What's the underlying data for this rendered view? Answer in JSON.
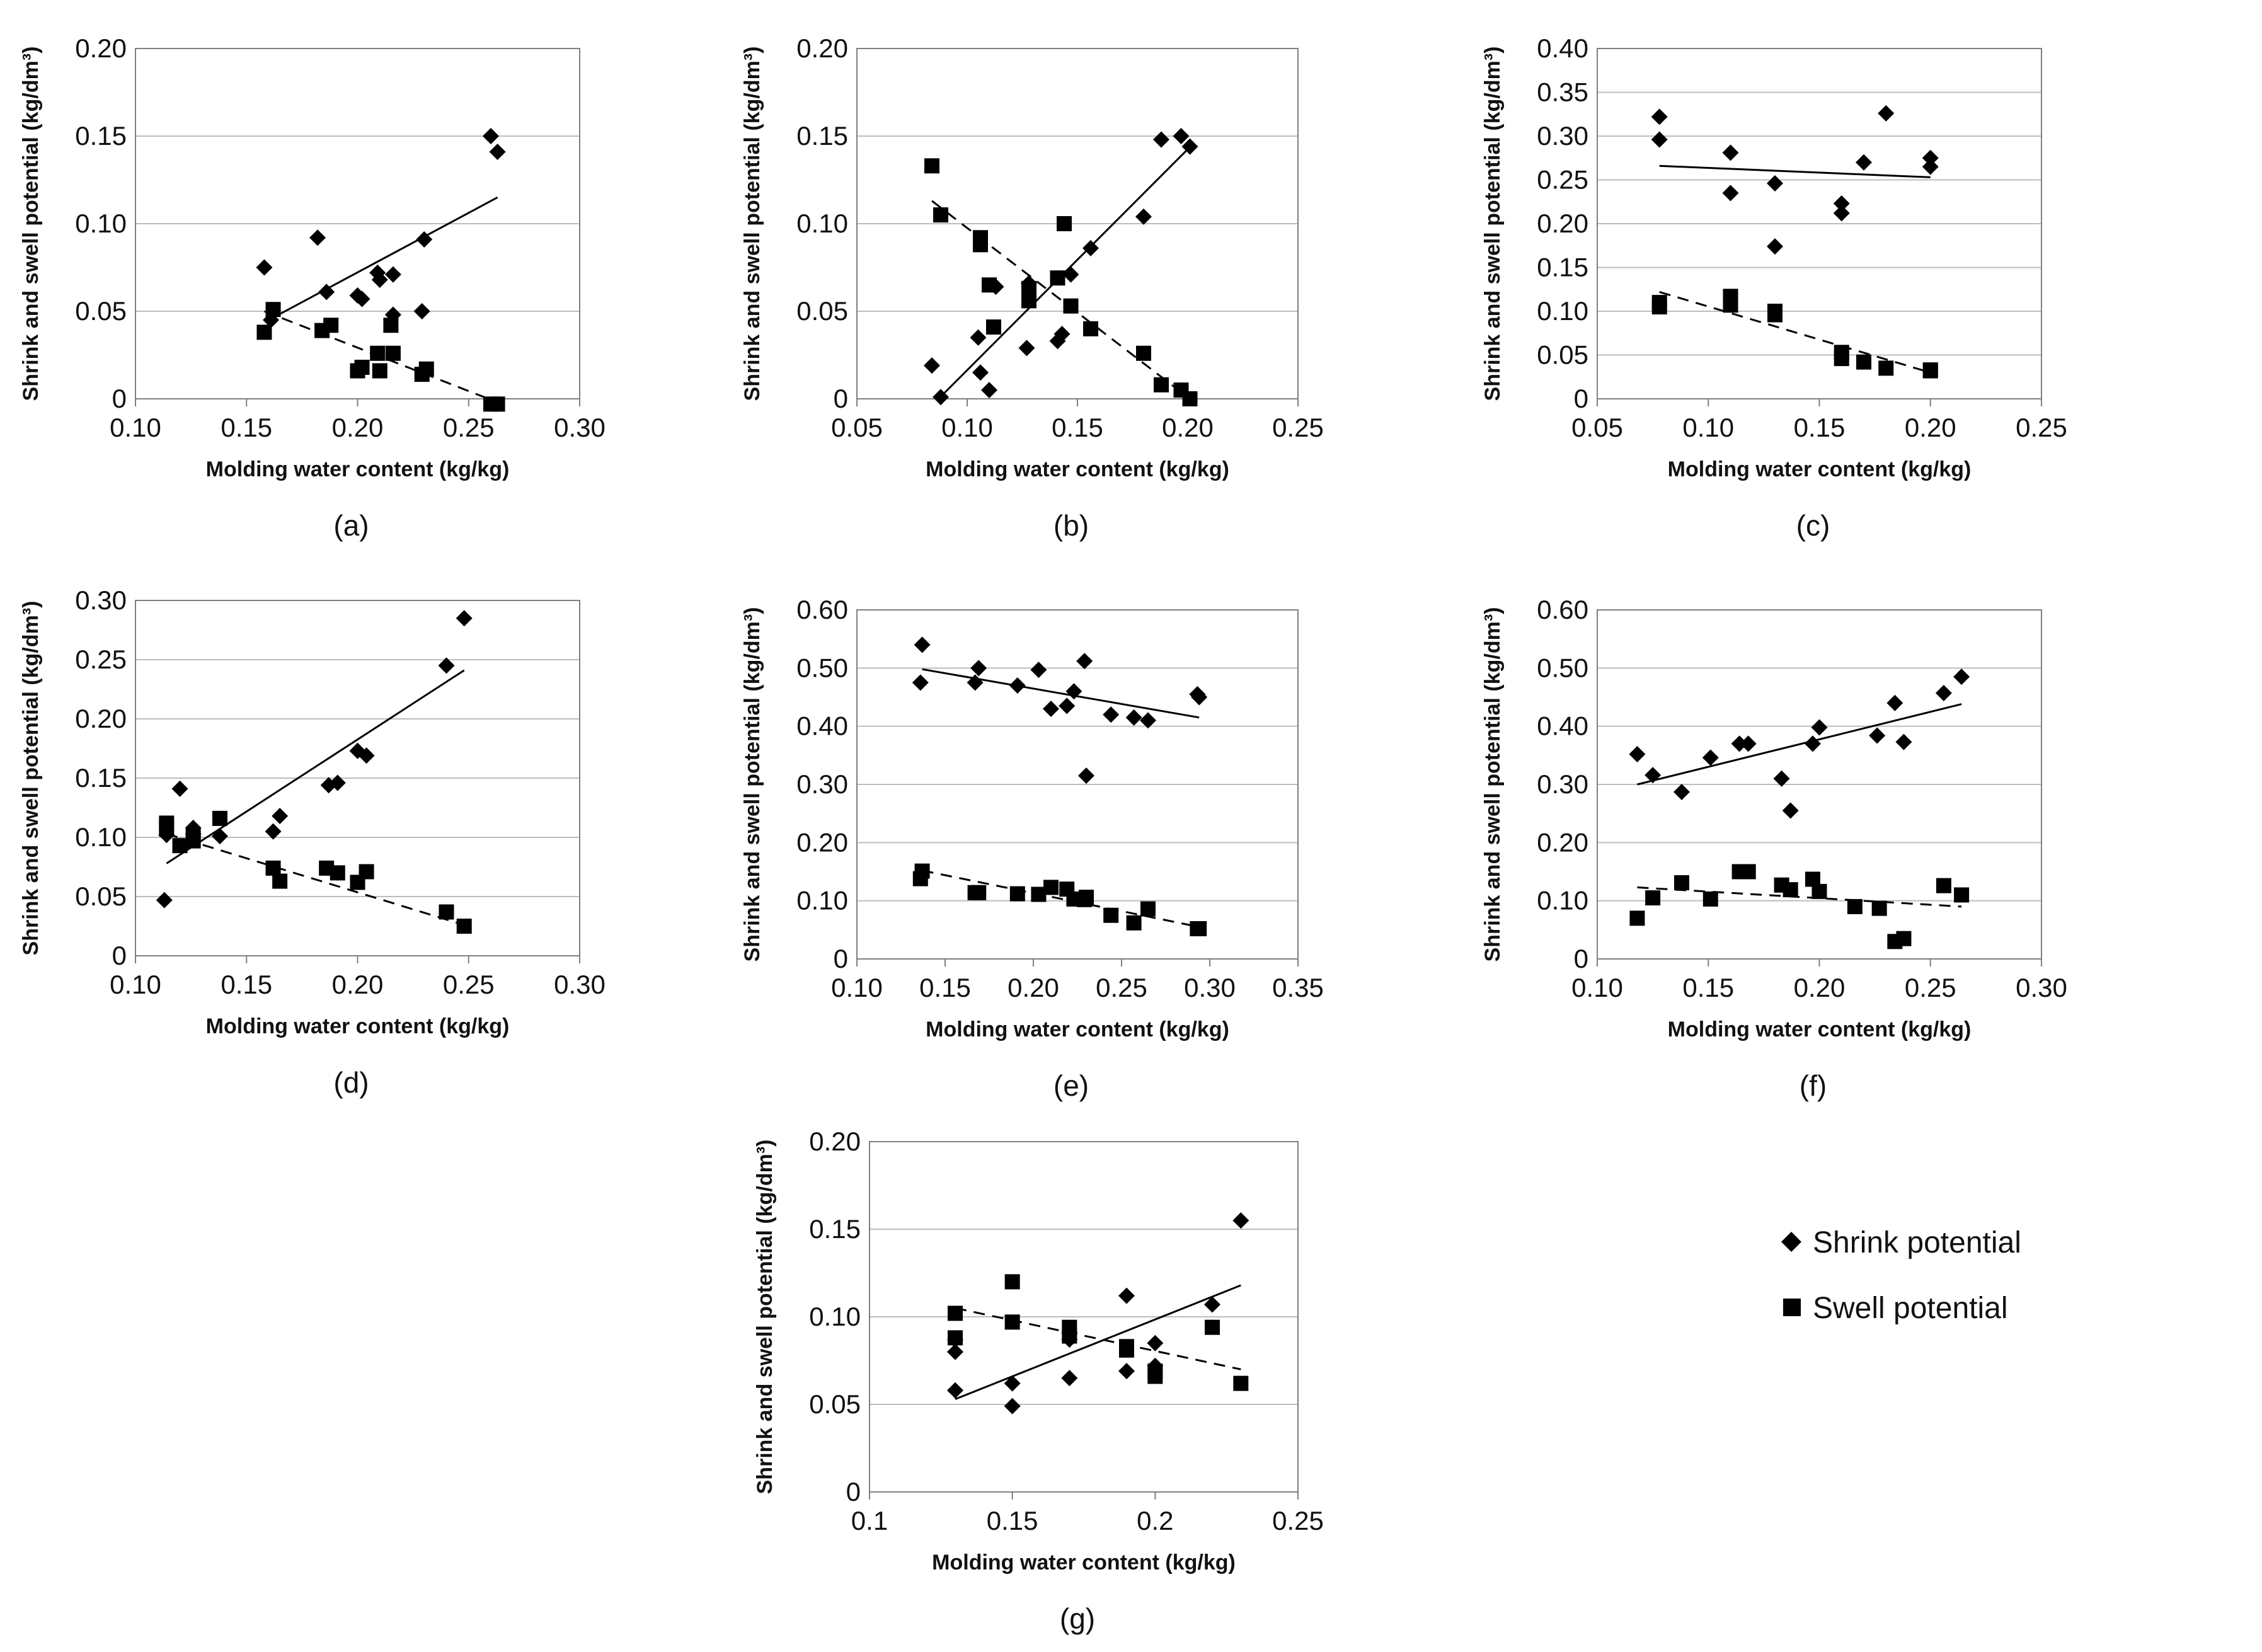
{
  "legend": {
    "shrink_label": "Shrink potential",
    "swell_label": "Swell potential"
  },
  "colors": {
    "marker": "#000000",
    "grid": "#bdbdbd",
    "axis": "#7f7f7f"
  },
  "chart_data": [
    {
      "panel": "(a)",
      "type": "scatter",
      "xlabel": "Molding water content (kg/kg)",
      "ylabel": "Shrink and swell potential (kg/dm³)",
      "xlim": [
        0.1,
        0.3
      ],
      "ylim": [
        0,
        0.2
      ],
      "xticks": [
        0.1,
        0.15,
        0.2,
        0.25,
        0.3
      ],
      "xtick_labels": [
        "0.10",
        "0.15",
        "0.20",
        "0.25",
        "0.30"
      ],
      "yticks": [
        0,
        0.05,
        0.1,
        0.15,
        0.2
      ],
      "ytick_labels": [
        "0",
        "0.05",
        "0.10",
        "0.15",
        "0.20"
      ],
      "series": [
        {
          "name": "Shrink potential",
          "marker": "diamond",
          "x": [
            0.158,
            0.161,
            0.182,
            0.186,
            0.2,
            0.202,
            0.209,
            0.21,
            0.216,
            0.216,
            0.229,
            0.23,
            0.26,
            0.263
          ],
          "y": [
            0.075,
            0.045,
            0.092,
            0.061,
            0.059,
            0.057,
            0.072,
            0.068,
            0.071,
            0.048,
            0.05,
            0.091,
            0.15,
            0.141
          ],
          "trend": {
            "style": "solid",
            "x": [
              0.16,
              0.263
            ],
            "y": [
              0.045,
              0.115
            ]
          }
        },
        {
          "name": "Swell potential",
          "marker": "square",
          "x": [
            0.158,
            0.162,
            0.184,
            0.188,
            0.2,
            0.202,
            0.209,
            0.21,
            0.215,
            0.216,
            0.229,
            0.231,
            0.26,
            0.263
          ],
          "y": [
            0.038,
            0.051,
            0.039,
            0.042,
            0.016,
            0.018,
            0.026,
            0.016,
            0.042,
            0.026,
            0.014,
            0.017,
            -0.003,
            -0.003
          ],
          "trend": {
            "style": "dashed",
            "x": [
              0.158,
              0.263
            ],
            "y": [
              0.05,
              -0.002
            ]
          }
        }
      ]
    },
    {
      "panel": "(b)",
      "type": "scatter",
      "xlabel": "Molding water content (kg/kg)",
      "ylabel": "Shrink and swell potential (kg/dm³)",
      "xlim": [
        0.05,
        0.25
      ],
      "ylim": [
        0,
        0.2
      ],
      "xticks": [
        0.05,
        0.1,
        0.15,
        0.2,
        0.25
      ],
      "xtick_labels": [
        "0.05",
        "0.10",
        "0.15",
        "0.20",
        "0.25"
      ],
      "yticks": [
        0,
        0.05,
        0.1,
        0.15,
        0.2
      ],
      "ytick_labels": [
        "0",
        "0.05",
        "0.10",
        "0.15",
        "0.20"
      ],
      "series": [
        {
          "name": "Shrink potential",
          "marker": "diamond",
          "x": [
            0.084,
            0.088,
            0.105,
            0.106,
            0.11,
            0.113,
            0.127,
            0.128,
            0.141,
            0.143,
            0.147,
            0.156,
            0.18,
            0.188,
            0.197,
            0.201
          ],
          "y": [
            0.019,
            0.001,
            0.035,
            0.015,
            0.005,
            0.064,
            0.029,
            0.066,
            0.033,
            0.037,
            0.071,
            0.086,
            0.104,
            0.148,
            0.15,
            0.144
          ],
          "trend": {
            "style": "solid",
            "x": [
              0.087,
              0.202
            ],
            "y": [
              0.0,
              0.145
            ]
          }
        },
        {
          "name": "Swell potential",
          "marker": "square",
          "x": [
            0.084,
            0.088,
            0.106,
            0.106,
            0.11,
            0.112,
            0.128,
            0.128,
            0.141,
            0.144,
            0.147,
            0.156,
            0.18,
            0.188,
            0.197,
            0.201
          ],
          "y": [
            0.133,
            0.105,
            0.092,
            0.088,
            0.065,
            0.041,
            0.063,
            0.056,
            0.069,
            0.1,
            0.053,
            0.04,
            0.026,
            0.008,
            0.005,
            0.0
          ],
          "trend": {
            "style": "dashed",
            "x": [
              0.084,
              0.201
            ],
            "y": [
              0.113,
              0.0
            ]
          }
        }
      ]
    },
    {
      "panel": "(c)",
      "type": "scatter",
      "xlabel": "Molding water content (kg/kg)",
      "ylabel": "Shrink and swell potential (kg/dm³)",
      "xlim": [
        0.05,
        0.25
      ],
      "ylim": [
        0,
        0.4
      ],
      "xticks": [
        0.05,
        0.1,
        0.15,
        0.2,
        0.25
      ],
      "xtick_labels": [
        "0.05",
        "0.10",
        "0.15",
        "0.20",
        "0.25"
      ],
      "yticks": [
        0,
        0.05,
        0.1,
        0.15,
        0.2,
        0.25,
        0.3,
        0.35,
        0.4
      ],
      "ytick_labels": [
        "0",
        "0.05",
        "0.10",
        "0.15",
        "0.20",
        "0.25",
        "0.30",
        "0.35",
        "0.40"
      ],
      "series": [
        {
          "name": "Shrink potential",
          "marker": "diamond",
          "x": [
            0.078,
            0.078,
            0.11,
            0.11,
            0.13,
            0.13,
            0.16,
            0.16,
            0.17,
            0.18,
            0.2,
            0.2
          ],
          "y": [
            0.322,
            0.296,
            0.281,
            0.235,
            0.246,
            0.174,
            0.223,
            0.212,
            0.27,
            0.326,
            0.275,
            0.265
          ],
          "trend": {
            "style": "solid",
            "x": [
              0.078,
              0.2
            ],
            "y": [
              0.266,
              0.253
            ]
          }
        },
        {
          "name": "Swell potential",
          "marker": "square",
          "x": [
            0.078,
            0.078,
            0.11,
            0.11,
            0.13,
            0.13,
            0.16,
            0.16,
            0.17,
            0.18,
            0.2,
            0.2
          ],
          "y": [
            0.11,
            0.105,
            0.117,
            0.107,
            0.1,
            0.096,
            0.053,
            0.046,
            0.042,
            0.035,
            0.033,
            0.032
          ],
          "trend": {
            "style": "dashed",
            "x": [
              0.078,
              0.2
            ],
            "y": [
              0.122,
              0.03
            ]
          }
        }
      ]
    },
    {
      "panel": "(d)",
      "type": "scatter",
      "xlabel": "Molding water content (kg/kg)",
      "ylabel": "Shrink and swell potential (kg/dm³)",
      "xlim": [
        0.1,
        0.3
      ],
      "ylim": [
        0,
        0.3
      ],
      "xticks": [
        0.1,
        0.15,
        0.2,
        0.25,
        0.3
      ],
      "xtick_labels": [
        "0.10",
        "0.15",
        "0.20",
        "0.25",
        "0.30"
      ],
      "yticks": [
        0,
        0.05,
        0.1,
        0.15,
        0.2,
        0.25,
        0.3
      ],
      "ytick_labels": [
        "0",
        "0.05",
        "0.10",
        "0.15",
        "0.20",
        "0.25",
        "0.30"
      ],
      "series": [
        {
          "name": "Shrink potential",
          "marker": "diamond",
          "x": [
            0.113,
            0.114,
            0.12,
            0.126,
            0.126,
            0.138,
            0.162,
            0.165,
            0.187,
            0.191,
            0.2,
            0.204,
            0.24,
            0.248
          ],
          "y": [
            0.047,
            0.102,
            0.141,
            0.108,
            0.103,
            0.101,
            0.105,
            0.118,
            0.144,
            0.146,
            0.173,
            0.169,
            0.245,
            0.285
          ],
          "trend": {
            "style": "solid",
            "x": [
              0.114,
              0.248
            ],
            "y": [
              0.078,
              0.241
            ]
          }
        },
        {
          "name": "Swell potential",
          "marker": "square",
          "x": [
            0.114,
            0.114,
            0.12,
            0.126,
            0.126,
            0.138,
            0.162,
            0.165,
            0.186,
            0.191,
            0.2,
            0.204,
            0.24,
            0.248
          ],
          "y": [
            0.112,
            0.107,
            0.093,
            0.101,
            0.097,
            0.116,
            0.074,
            0.063,
            0.074,
            0.07,
            0.062,
            0.071,
            0.037,
            0.025
          ],
          "trend": {
            "style": "dashed",
            "x": [
              0.114,
              0.248
            ],
            "y": [
              0.103,
              0.026
            ]
          }
        }
      ]
    },
    {
      "panel": "(e)",
      "type": "scatter",
      "xlabel": "Molding water content (kg/kg)",
      "ylabel": "Shrink and swell potential (kg/dm³)",
      "xlim": [
        0.1,
        0.35
      ],
      "ylim": [
        0,
        0.6
      ],
      "xticks": [
        0.1,
        0.15,
        0.2,
        0.25,
        0.3,
        0.35
      ],
      "xtick_labels": [
        "0.10",
        "0.15",
        "0.20",
        "0.25",
        "0.30",
        "0.35"
      ],
      "yticks": [
        0,
        0.1,
        0.2,
        0.3,
        0.4,
        0.5,
        0.6
      ],
      "ytick_labels": [
        "0",
        "0.10",
        "0.20",
        "0.30",
        "0.40",
        "0.50",
        "0.60"
      ],
      "series": [
        {
          "name": "Shrink potential",
          "marker": "diamond",
          "x": [
            0.136,
            0.137,
            0.167,
            0.169,
            0.191,
            0.203,
            0.21,
            0.219,
            0.223,
            0.229,
            0.23,
            0.244,
            0.257,
            0.265,
            0.293,
            0.294
          ],
          "y": [
            0.475,
            0.54,
            0.475,
            0.5,
            0.47,
            0.497,
            0.43,
            0.435,
            0.46,
            0.512,
            0.315,
            0.42,
            0.415,
            0.41,
            0.455,
            0.45
          ],
          "trend": {
            "style": "solid",
            "x": [
              0.137,
              0.294
            ],
            "y": [
              0.498,
              0.415
            ]
          }
        },
        {
          "name": "Swell potential",
          "marker": "square",
          "x": [
            0.136,
            0.137,
            0.167,
            0.169,
            0.191,
            0.203,
            0.21,
            0.219,
            0.223,
            0.229,
            0.23,
            0.244,
            0.257,
            0.265,
            0.293,
            0.294
          ],
          "y": [
            0.138,
            0.151,
            0.114,
            0.114,
            0.112,
            0.111,
            0.123,
            0.12,
            0.103,
            0.102,
            0.106,
            0.075,
            0.062,
            0.086,
            0.052,
            0.052
          ],
          "trend": {
            "style": "dashed",
            "x": [
              0.137,
              0.294
            ],
            "y": [
              0.152,
              0.055
            ]
          }
        }
      ]
    },
    {
      "panel": "(f)",
      "type": "scatter",
      "xlabel": "Molding water content (kg/kg)",
      "ylabel": "Shrink and swell potential (kg/dm³)",
      "xlim": [
        0.1,
        0.3
      ],
      "ylim": [
        0,
        0.6
      ],
      "xticks": [
        0.1,
        0.15,
        0.2,
        0.25,
        0.3
      ],
      "xtick_labels": [
        "0.10",
        "0.15",
        "0.20",
        "0.25",
        "0.30"
      ],
      "yticks": [
        0,
        0.1,
        0.2,
        0.3,
        0.4,
        0.5,
        0.6
      ],
      "ytick_labels": [
        "0",
        "0.10",
        "0.20",
        "0.30",
        "0.40",
        "0.50",
        "0.60"
      ],
      "series": [
        {
          "name": "Shrink potential",
          "marker": "diamond",
          "x": [
            0.118,
            0.125,
            0.138,
            0.151,
            0.164,
            0.168,
            0.183,
            0.187,
            0.197,
            0.2,
            0.226,
            0.234,
            0.238,
            0.256,
            0.264
          ],
          "y": [
            0.352,
            0.316,
            0.287,
            0.346,
            0.37,
            0.37,
            0.31,
            0.255,
            0.37,
            0.398,
            0.384,
            0.44,
            0.373,
            0.457,
            0.485
          ],
          "trend": {
            "style": "solid",
            "x": [
              0.118,
              0.264
            ],
            "y": [
              0.3,
              0.438
            ]
          }
        },
        {
          "name": "Swell potential",
          "marker": "square",
          "x": [
            0.118,
            0.125,
            0.138,
            0.151,
            0.164,
            0.168,
            0.183,
            0.187,
            0.197,
            0.2,
            0.216,
            0.227,
            0.234,
            0.238,
            0.256,
            0.264
          ],
          "y": [
            0.07,
            0.105,
            0.131,
            0.103,
            0.15,
            0.15,
            0.127,
            0.119,
            0.137,
            0.116,
            0.09,
            0.087,
            0.03,
            0.035,
            0.126,
            0.11
          ],
          "trend": {
            "style": "dashed",
            "x": [
              0.118,
              0.264
            ],
            "y": [
              0.123,
              0.09
            ]
          }
        }
      ]
    },
    {
      "panel": "(g)",
      "type": "scatter",
      "xlabel": "Molding water content (kg/kg)",
      "ylabel": "Shrink and swell potential (kg/dm³)",
      "xlim": [
        0.1,
        0.25
      ],
      "ylim": [
        0,
        0.2
      ],
      "xticks": [
        0.1,
        0.15,
        0.2,
        0.25
      ],
      "xtick_labels": [
        "0.1",
        "0.15",
        "0.2",
        "0.25"
      ],
      "yticks": [
        0,
        0.05,
        0.1,
        0.15,
        0.2
      ],
      "ytick_labels": [
        "0",
        "0.05",
        "0.10",
        "0.15",
        "0.20"
      ],
      "series": [
        {
          "name": "Shrink potential",
          "marker": "diamond",
          "x": [
            0.13,
            0.13,
            0.13,
            0.15,
            0.15,
            0.17,
            0.17,
            0.17,
            0.19,
            0.19,
            0.2,
            0.2,
            0.22,
            0.23
          ],
          "y": [
            0.058,
            0.08,
            0.087,
            0.049,
            0.062,
            0.065,
            0.087,
            0.091,
            0.069,
            0.112,
            0.085,
            0.072,
            0.107,
            0.155
          ],
          "trend": {
            "style": "solid",
            "x": [
              0.13,
              0.23
            ],
            "y": [
              0.053,
              0.118
            ]
          }
        },
        {
          "name": "Swell potential",
          "marker": "square",
          "x": [
            0.13,
            0.13,
            0.15,
            0.15,
            0.17,
            0.17,
            0.19,
            0.19,
            0.2,
            0.2,
            0.22,
            0.23
          ],
          "y": [
            0.088,
            0.102,
            0.12,
            0.097,
            0.094,
            0.089,
            0.083,
            0.081,
            0.069,
            0.066,
            0.094,
            0.062
          ],
          "trend": {
            "style": "dashed",
            "x": [
              0.13,
              0.23
            ],
            "y": [
              0.105,
              0.07
            ]
          }
        }
      ]
    }
  ]
}
